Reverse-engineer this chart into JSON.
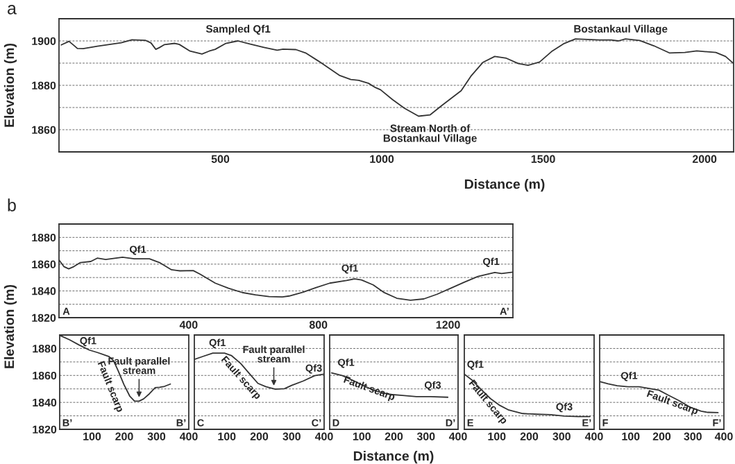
{
  "chart_data": [
    {
      "type": "line",
      "xlabel": "Distance (m)",
      "ylabel": "Elevation (m)",
      "xlim": [
        0,
        2090
      ],
      "ylim": [
        1850,
        1910
      ],
      "xticks": [
        500,
        1000,
        1500,
        2000
      ],
      "yticks": [
        1860,
        {
          "value": 1870,
          "label": null
        },
        1880,
        {
          "value": 1890,
          "label": null
        },
        1900
      ],
      "grid": "y",
      "x": [
        7,
        31,
        46,
        57,
        75,
        119,
        193,
        226,
        267,
        285,
        300,
        311,
        326,
        359,
        373,
        406,
        443,
        465,
        484,
        517,
        554,
        591,
        635,
        676,
        694,
        734,
        764,
        804,
        841,
        870,
        904,
        929,
        959,
        980,
        996,
        1033,
        1070,
        1114,
        1150,
        1187,
        1246,
        1276,
        1313,
        1350,
        1386,
        1423,
        1453,
        1489,
        1526,
        1563,
        1600,
        1674,
        1711,
        1733,
        1755,
        1799,
        1843,
        1891,
        1939,
        1976,
        2035,
        2065,
        2090
      ],
      "series": [
        {
          "color": "#333333",
          "values": [
            1898.2,
            1899.8,
            1898,
            1896.6,
            1896.5,
            1897.6,
            1899.2,
            1900.5,
            1900.3,
            1899.1,
            1896.2,
            1897,
            1898.3,
            1898.9,
            1898.4,
            1895.4,
            1894.1,
            1895.4,
            1896.2,
            1898.9,
            1900,
            1898.6,
            1897.1,
            1895.8,
            1896.3,
            1896.1,
            1894.6,
            1890.9,
            1887.3,
            1884.4,
            1882.6,
            1882.2,
            1880.9,
            1879,
            1878,
            1873.6,
            1869.7,
            1866.1,
            1866.7,
            1871,
            1877.6,
            1884.1,
            1890.3,
            1893,
            1892.2,
            1889.8,
            1889,
            1890.5,
            1895.2,
            1898.7,
            1900.9,
            1900.4,
            1900.4,
            1900,
            1900.9,
            1900.2,
            1897.8,
            1894.6,
            1894.8,
            1895.5,
            1894.8,
            1893,
            1889.8
          ]
        }
      ],
      "annotations": [
        "a",
        "Sampled Qf1",
        "Bostankaul Village",
        "Stream North of\nBostankaul Village"
      ]
    },
    {
      "type": "line",
      "ylabel": "Elevation (m)",
      "xlim": [
        0,
        1400
      ],
      "ylim": [
        1820,
        1890
      ],
      "xticks": [
        400,
        800,
        1200
      ],
      "yticks": [
        1820,
        {
          "value": 1830,
          "label": null
        },
        1840,
        {
          "value": 1850,
          "label": null
        },
        1860,
        {
          "value": 1870,
          "label": null
        },
        1880
      ],
      "grid": "y",
      "x": [
        0,
        15,
        30,
        46,
        66,
        98,
        118,
        144,
        196,
        232,
        279,
        310,
        347,
        373,
        414,
        435,
        482,
        523,
        565,
        606,
        648,
        689,
        710,
        752,
        793,
        835,
        887,
        912,
        933,
        969,
        1001,
        1042,
        1084,
        1125,
        1166,
        1208,
        1250,
        1292,
        1344,
        1365,
        1400
      ],
      "series": [
        {
          "color": "#333333",
          "values": [
            1863.2,
            1858.2,
            1856.5,
            1858.2,
            1861.2,
            1862,
            1864.5,
            1863.5,
            1865.2,
            1864,
            1864,
            1861.2,
            1855.8,
            1855,
            1855.2,
            1852.5,
            1845.8,
            1842,
            1838.8,
            1837,
            1835.8,
            1835.5,
            1836.2,
            1839,
            1842.5,
            1845.8,
            1847.8,
            1849,
            1848.2,
            1844.5,
            1839,
            1834.5,
            1833,
            1834,
            1837.5,
            1842,
            1846.5,
            1850.8,
            1853.8,
            1853,
            1854
          ]
        }
      ],
      "annotations": [
        "b",
        "Qf1",
        "Qf1",
        "Qf1",
        "A",
        "A’"
      ]
    },
    {
      "type": "line",
      "xlim": [
        0,
        400
      ],
      "ylim": [
        1820,
        1890
      ],
      "xticks": [
        100,
        200,
        300,
        400
      ],
      "yticks": [
        1820,
        {
          "value": 1830,
          "label": null
        },
        1840,
        {
          "value": 1850,
          "label": null
        },
        1860,
        {
          "value": 1870,
          "label": null
        },
        1880
      ],
      "grid": "y",
      "x": [
        0,
        31,
        60,
        92,
        117,
        153,
        167,
        181,
        199,
        217,
        232,
        246,
        260,
        278,
        296,
        310,
        325,
        343
      ],
      "series": [
        {
          "color": "#333333",
          "values": [
            1889.8,
            1886.4,
            1882.6,
            1878.8,
            1877,
            1874,
            1870.9,
            1863.6,
            1853.3,
            1844.7,
            1840.9,
            1840.9,
            1842.6,
            1846.4,
            1850.9,
            1851.2,
            1851.9,
            1853.6
          ]
        }
      ],
      "annotations": [
        "Qf1",
        "Fault scarp",
        {
          "text": "Fault parallel\nstream",
          "x": 246,
          "y": 1843.8
        },
        "B’",
        "B’"
      ]
    },
    {
      "type": "line",
      "xlim": [
        0,
        400
      ],
      "ylim": [
        1820,
        1890
      ],
      "xticks": [
        100,
        200,
        300,
        400
      ],
      "yticks": [
        1820,
        {
          "value": 1830,
          "label": null
        },
        1840,
        {
          "value": 1850,
          "label": null
        },
        1860,
        {
          "value": 1870,
          "label": null
        },
        1880
      ],
      "grid": "y",
      "tick_labels": "x",
      "x": [
        0,
        29,
        57,
        93,
        114,
        143,
        171,
        196,
        221,
        250,
        278,
        300,
        336,
        371,
        400
      ],
      "series": [
        {
          "color": "#333333",
          "values": [
            1871.9,
            1874.3,
            1876.6,
            1876.6,
            1874.8,
            1868.8,
            1861,
            1854.1,
            1851.6,
            1849.8,
            1850.2,
            1852.6,
            1855.9,
            1859.8,
            1861
          ]
        }
      ],
      "annotations": [
        "Qf1",
        "Fault scarp",
        {
          "text": "Fault parallel\nstream",
          "x": 245,
          "y": 1852.4
        },
        "Qf3",
        "C",
        "C’"
      ]
    },
    {
      "type": "line",
      "xlabel": "Distance (m)",
      "xlim": [
        0,
        400
      ],
      "ylim": [
        1820,
        1890
      ],
      "xticks": [
        100,
        200,
        300,
        400
      ],
      "yticks": [
        1820,
        {
          "value": 1830,
          "label": null
        },
        1840,
        {
          "value": 1850,
          "label": null
        },
        1860,
        {
          "value": 1870,
          "label": null
        },
        1880
      ],
      "grid": "y",
      "tick_labels": "x",
      "x": [
        6,
        40,
        76,
        112,
        148,
        184,
        227,
        270,
        314,
        368
      ],
      "series": [
        {
          "color": "#333333",
          "values": [
            1861.9,
            1859.8,
            1855.9,
            1851.6,
            1848.1,
            1846,
            1845.2,
            1844.3,
            1844.3,
            1843.8
          ]
        }
      ],
      "annotations": [
        "Qf1",
        "Fault scarp",
        "Qf3",
        "D",
        "D’"
      ]
    },
    {
      "type": "line",
      "xlim": [
        0,
        400
      ],
      "ylim": [
        1820,
        1890
      ],
      "xticks": [
        100,
        200,
        300,
        400
      ],
      "yticks": [
        1820,
        {
          "value": 1830,
          "label": null
        },
        1840,
        {
          "value": 1850,
          "label": null
        },
        1860,
        {
          "value": 1870,
          "label": null
        },
        1880
      ],
      "grid": "y",
      "tick_labels": "x",
      "x": [
        0,
        23,
        51,
        80,
        109,
        137,
        180,
        223,
        266,
        308,
        351,
        387
      ],
      "series": [
        {
          "color": "#333333",
          "values": [
            1861,
            1856.7,
            1849.8,
            1842.9,
            1837.8,
            1834.3,
            1831.7,
            1831.2,
            1830.9,
            1829.8,
            1829.5,
            1829.5
          ]
        }
      ],
      "annotations": [
        "Qf1",
        "Fault scarp",
        "Qf3",
        "E",
        "E’"
      ]
    },
    {
      "type": "line",
      "xlim": [
        0,
        400
      ],
      "ylim": [
        1820,
        1890
      ],
      "xticks": [
        100,
        200,
        300,
        400
      ],
      "yticks": [
        1820,
        {
          "value": 1830,
          "label": null
        },
        1840,
        {
          "value": 1850,
          "label": null
        },
        1860,
        {
          "value": 1870,
          "label": null
        },
        1880
      ],
      "grid": "y",
      "tick_labels": "x",
      "x": [
        2,
        27,
        56,
        91,
        127,
        163,
        191,
        220,
        256,
        291,
        327,
        348,
        381
      ],
      "series": [
        {
          "color": "#333333",
          "values": [
            1855.3,
            1853.8,
            1852.4,
            1851.6,
            1851.6,
            1850.2,
            1849,
            1845.5,
            1841.2,
            1836.4,
            1833.4,
            1832.6,
            1832.4
          ]
        }
      ],
      "annotations": [
        "Qf1",
        "Fault scarp",
        "F",
        "F’"
      ]
    }
  ]
}
